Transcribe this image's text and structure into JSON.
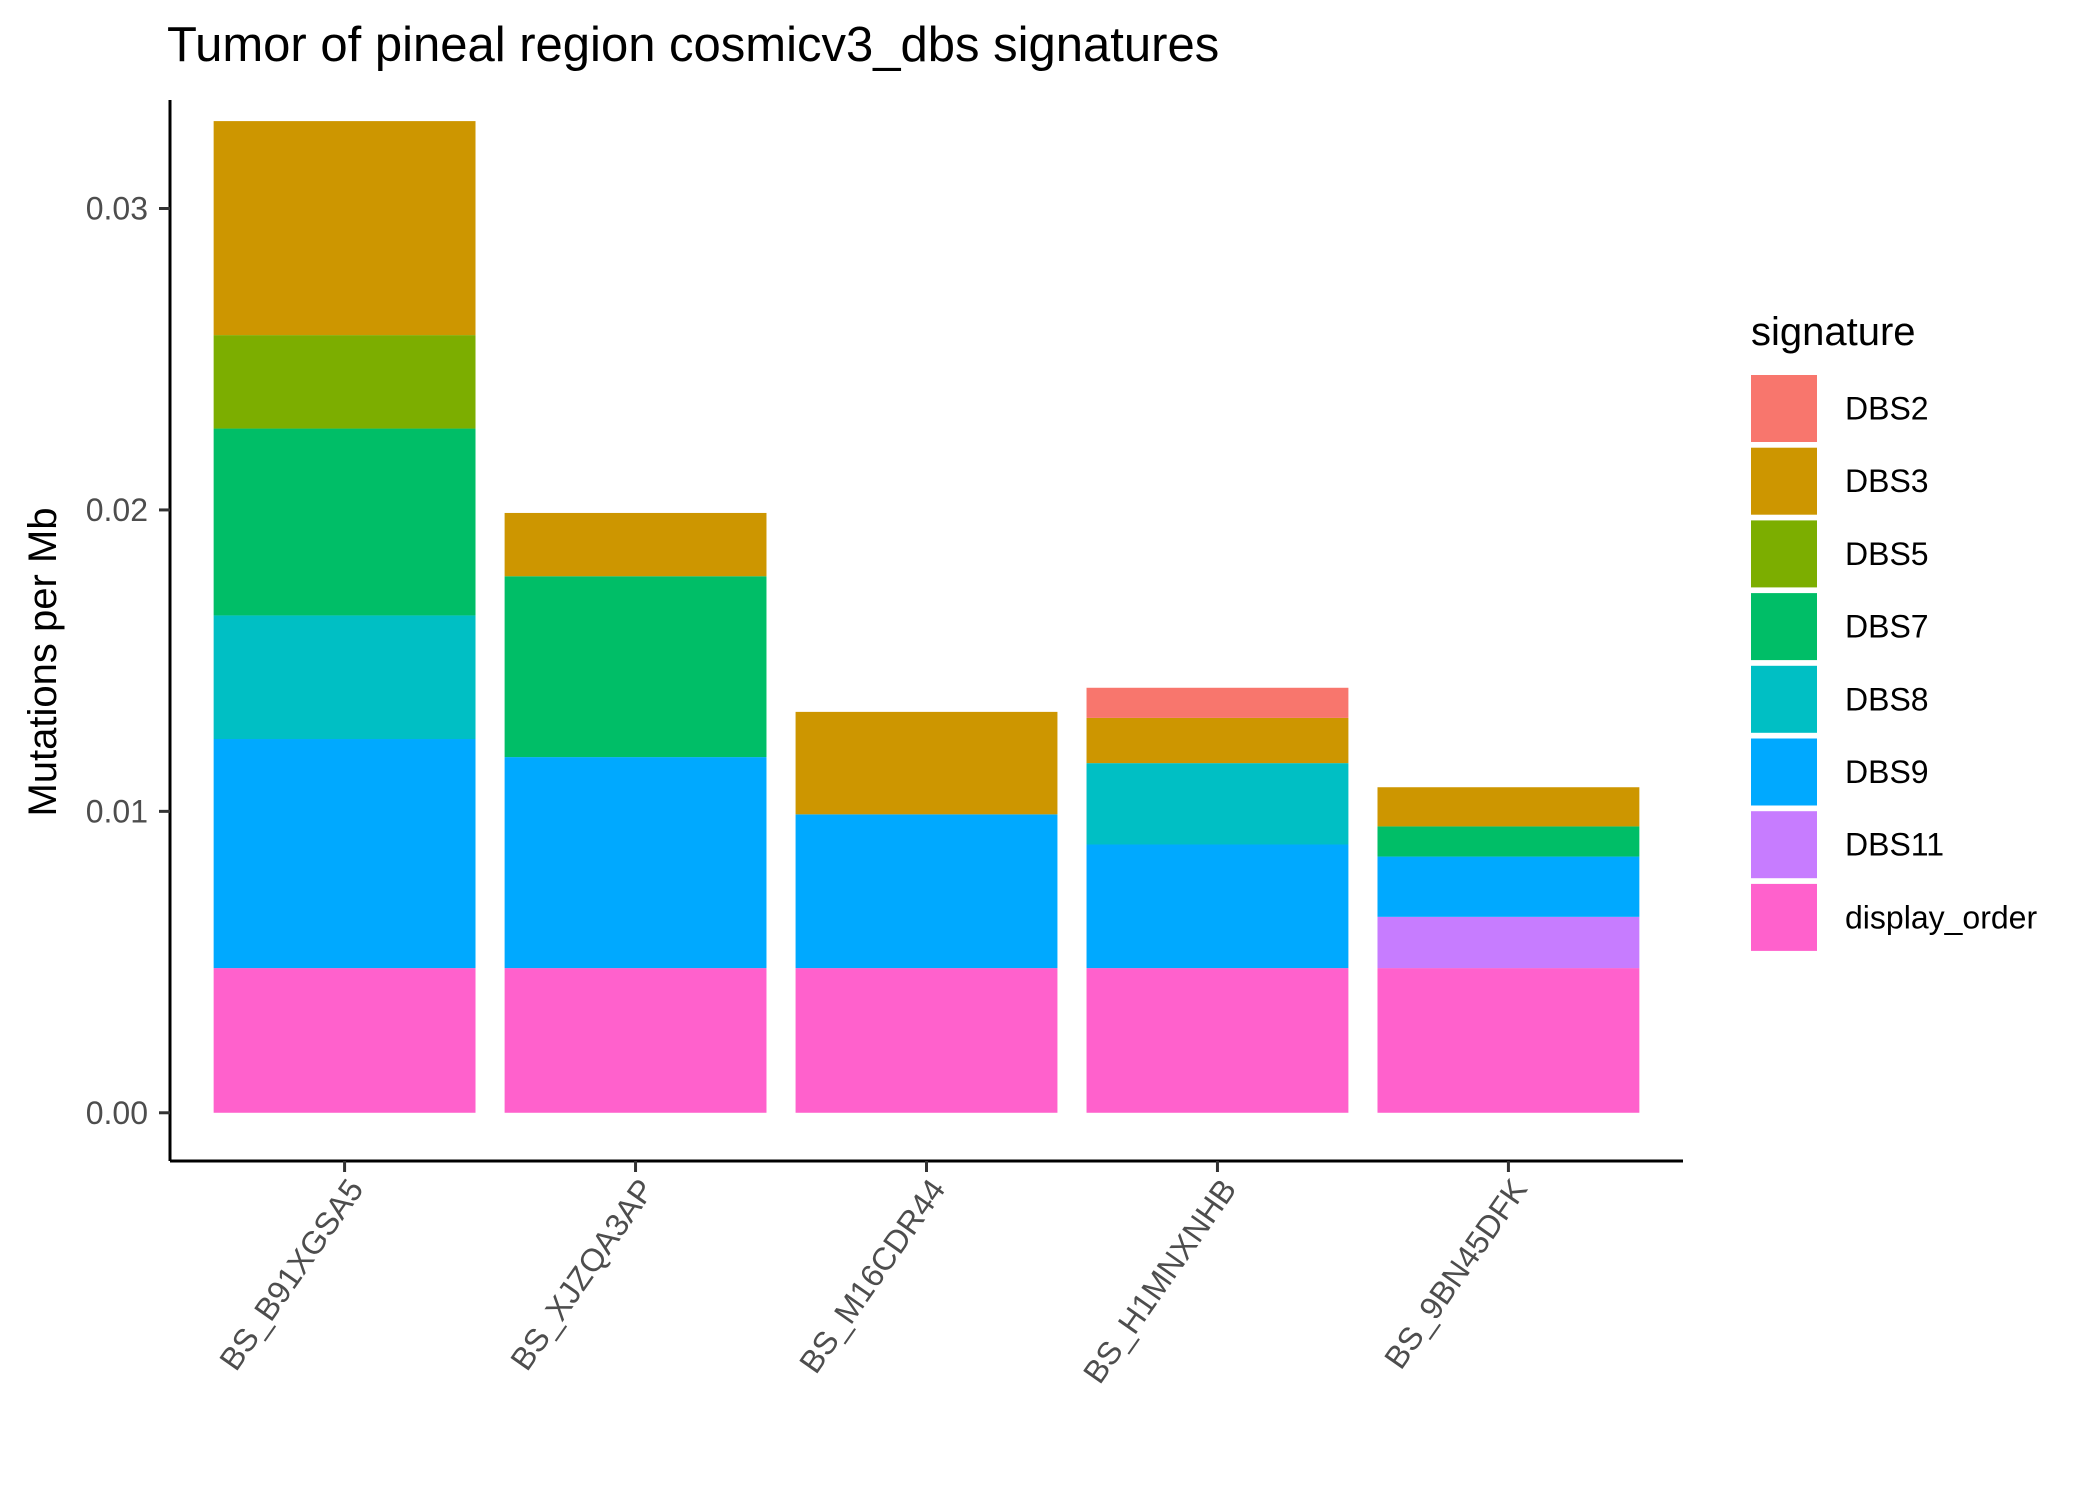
{
  "chart_data": {
    "type": "bar",
    "stacked": true,
    "title": "Tumor of pineal region cosmicv3_dbs signatures",
    "xlabel": "",
    "ylabel": "Mutations per Mb",
    "ylim": [
      -0.0016,
      0.0336
    ],
    "yticks": [
      0,
      0.01,
      0.02,
      0.03
    ],
    "ytick_labels": [
      "0.00",
      "0.01",
      "0.02",
      "0.03"
    ],
    "grid": false,
    "legend_title": "signature",
    "legend_position": "right",
    "categories": [
      "BS_B91XGSA5",
      "BS_XJZQA3AP",
      "BS_M16CDR44",
      "BS_H1MNXNHB",
      "BS_9BN45DFK"
    ],
    "series": [
      {
        "name": "display_order",
        "color": "#FF61CC",
        "values": [
          0.0048,
          0.0048,
          0.0048,
          0.0048,
          0.0048
        ]
      },
      {
        "name": "DBS11",
        "color": "#C77CFF",
        "values": [
          0,
          0,
          0,
          0,
          0.0017
        ]
      },
      {
        "name": "DBS9",
        "color": "#00A9FF",
        "values": [
          0.0076,
          0.007,
          0.0051,
          0.0041,
          0.002
        ]
      },
      {
        "name": "DBS8",
        "color": "#00BFC4",
        "values": [
          0.0041,
          0,
          0,
          0.0027,
          0
        ]
      },
      {
        "name": "DBS7",
        "color": "#00BE67",
        "values": [
          0.0062,
          0.006,
          0,
          0,
          0.001
        ]
      },
      {
        "name": "DBS5",
        "color": "#7CAE00",
        "values": [
          0.0031,
          0,
          0,
          0,
          0
        ]
      },
      {
        "name": "DBS3",
        "color": "#CD9600",
        "values": [
          0.0071,
          0.0021,
          0.0034,
          0.0015,
          0.0013
        ]
      },
      {
        "name": "DBS2",
        "color": "#F8766D",
        "values": [
          0,
          0,
          0,
          0.001,
          0
        ]
      }
    ],
    "legend_order": [
      "DBS2",
      "DBS3",
      "DBS5",
      "DBS7",
      "DBS8",
      "DBS9",
      "DBS11",
      "display_order"
    ]
  }
}
